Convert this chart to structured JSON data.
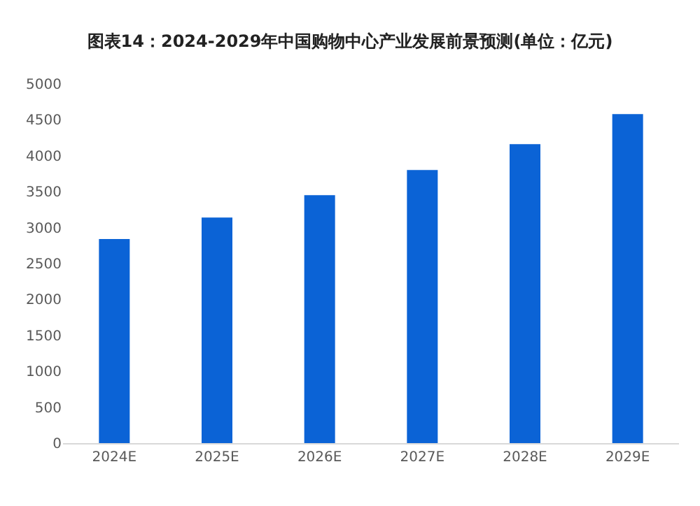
{
  "chart_data": {
    "type": "bar",
    "title": "图表14：2024-2029年中国购物中心产业发展前景预测(单位：亿元)",
    "categories": [
      "2024E",
      "2025E",
      "2026E",
      "2027E",
      "2028E",
      "2029E"
    ],
    "values": [
      2840,
      3140,
      3450,
      3800,
      4160,
      4580
    ],
    "color": "#0b63d6",
    "ylim": [
      0,
      5000
    ],
    "yticks": [
      0,
      500,
      1000,
      1500,
      2000,
      2500,
      3000,
      3500,
      4000,
      4500,
      5000
    ],
    "grid": false
  }
}
